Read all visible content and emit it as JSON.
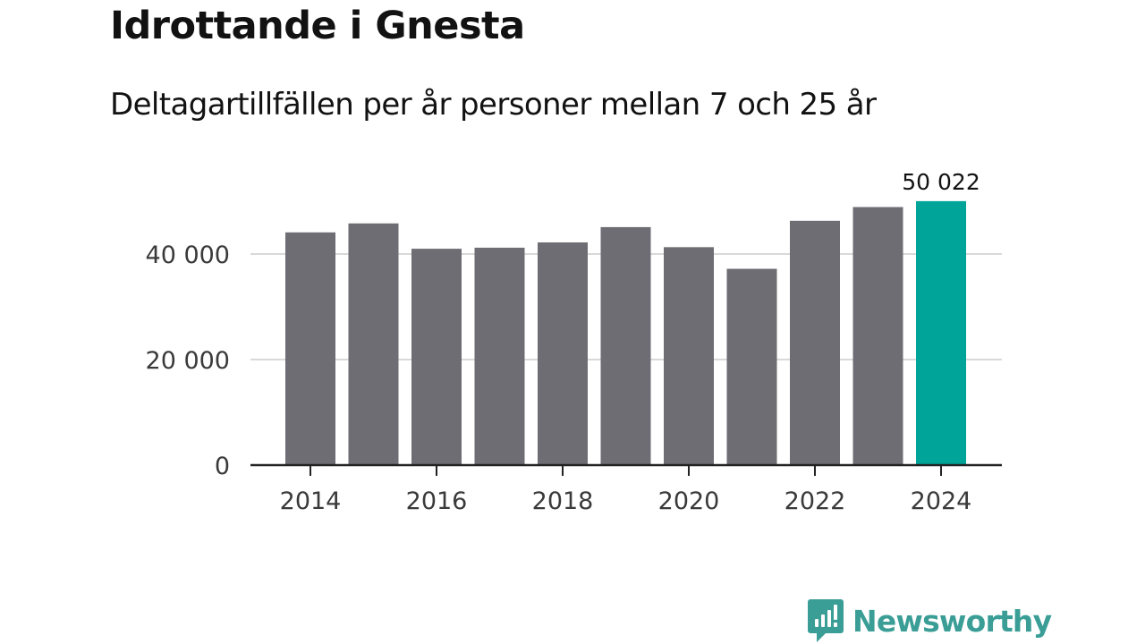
{
  "header": {
    "title": "Idrottande i Gnesta",
    "subtitle": "Deltagartillfällen per år personer mellan 7 och 25 år"
  },
  "brand": {
    "name": "Newsworthy",
    "color": "#3a9e96"
  },
  "colors": {
    "bar": "#6e6d73",
    "highlight": "#00a499",
    "grid": "#d9d9d9",
    "axis": "#222222"
  },
  "chart_data": {
    "type": "bar",
    "title": "Idrottande i Gnesta",
    "subtitle": "Deltagartillfällen per år personer mellan 7 och 25 år",
    "categories": [
      "2014",
      "2015",
      "2016",
      "2017",
      "2018",
      "2019",
      "2020",
      "2021",
      "2022",
      "2023",
      "2024"
    ],
    "values": [
      44100,
      45800,
      41000,
      41200,
      42200,
      45100,
      41300,
      37200,
      46300,
      48900,
      50022
    ],
    "highlight_index": 10,
    "value_labels": [
      {
        "index": 10,
        "text": "50 022"
      }
    ],
    "x_tick_labels": [
      "2014",
      "2016",
      "2018",
      "2020",
      "2022",
      "2024"
    ],
    "y_ticks": [
      0,
      20000,
      40000
    ],
    "y_tick_labels": [
      "0",
      "20 000",
      "40 000"
    ],
    "ylim": [
      0,
      52000
    ],
    "xlabel": "",
    "ylabel": "",
    "grid": true,
    "legend": "none"
  }
}
